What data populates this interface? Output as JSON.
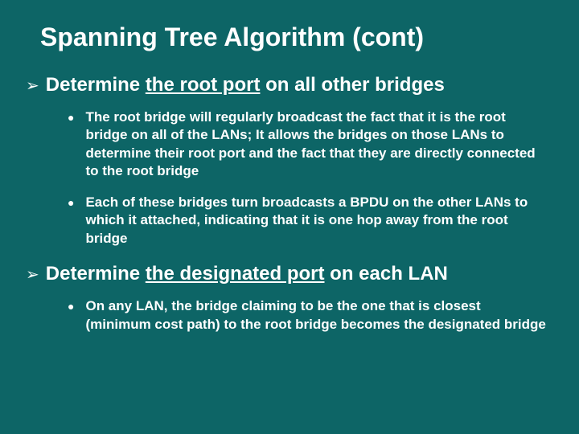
{
  "slide": {
    "background_color": "#0d6566",
    "text_color": "#ffffff",
    "title": "Spanning Tree Algorithm (cont)",
    "title_fontsize": 32,
    "sections": [
      {
        "heading_prefix": "Determine ",
        "heading_underlined": "the root port",
        "heading_suffix": " on all other bridges",
        "heading_fontsize": 24,
        "bullets": [
          "The root bridge will regularly broadcast the fact that it is the root bridge on all of the LANs; It allows the bridges on those LANs to determine their root port and the fact that they are directly connected to the root bridge",
          "Each of these bridges turn broadcasts a BPDU on the other LANs to which it attached, indicating that it is one hop away from the root bridge"
        ]
      },
      {
        "heading_prefix": "Determine ",
        "heading_underlined": "the designated port",
        "heading_suffix": " on each LAN",
        "heading_fontsize": 24,
        "bullets": [
          "On any LAN, the bridge claiming to be the one that is closest (minimum cost path) to the root bridge becomes the designated bridge"
        ]
      }
    ],
    "bullet_fontsize": 17,
    "arrow_glyph": "➢",
    "dot_glyph": "●"
  }
}
